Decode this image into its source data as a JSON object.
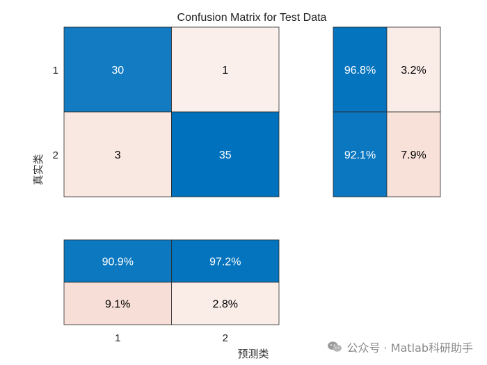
{
  "chart_data": {
    "type": "heatmap",
    "title": "Confusion Matrix for Test Data",
    "xlabel": "预测类",
    "ylabel": "真实类",
    "class_labels": [
      "1",
      "2"
    ],
    "matrix": [
      [
        30,
        1
      ],
      [
        3,
        35
      ]
    ],
    "row_summary": [
      [
        "96.8%",
        "3.2%"
      ],
      [
        "92.1%",
        "7.9%"
      ]
    ],
    "row_summary_values": [
      [
        96.8,
        3.2
      ],
      [
        92.1,
        7.9
      ]
    ],
    "column_summary": [
      [
        "90.9%",
        "97.2%"
      ],
      [
        "9.1%",
        "2.8%"
      ]
    ],
    "column_summary_values": [
      [
        90.9,
        97.2
      ],
      [
        9.1,
        2.8
      ]
    ],
    "colors": {
      "correct_scale": [
        "#7FB3DE",
        "#0072BD"
      ],
      "incorrect_scale": [
        "#FBF3F0",
        "#F7DCD3"
      ],
      "text_light": "#ffffff",
      "text_dark": "#000000"
    }
  },
  "watermark": {
    "text": "公众号 · Matlab科研助手",
    "icon": "wechat-icon"
  }
}
